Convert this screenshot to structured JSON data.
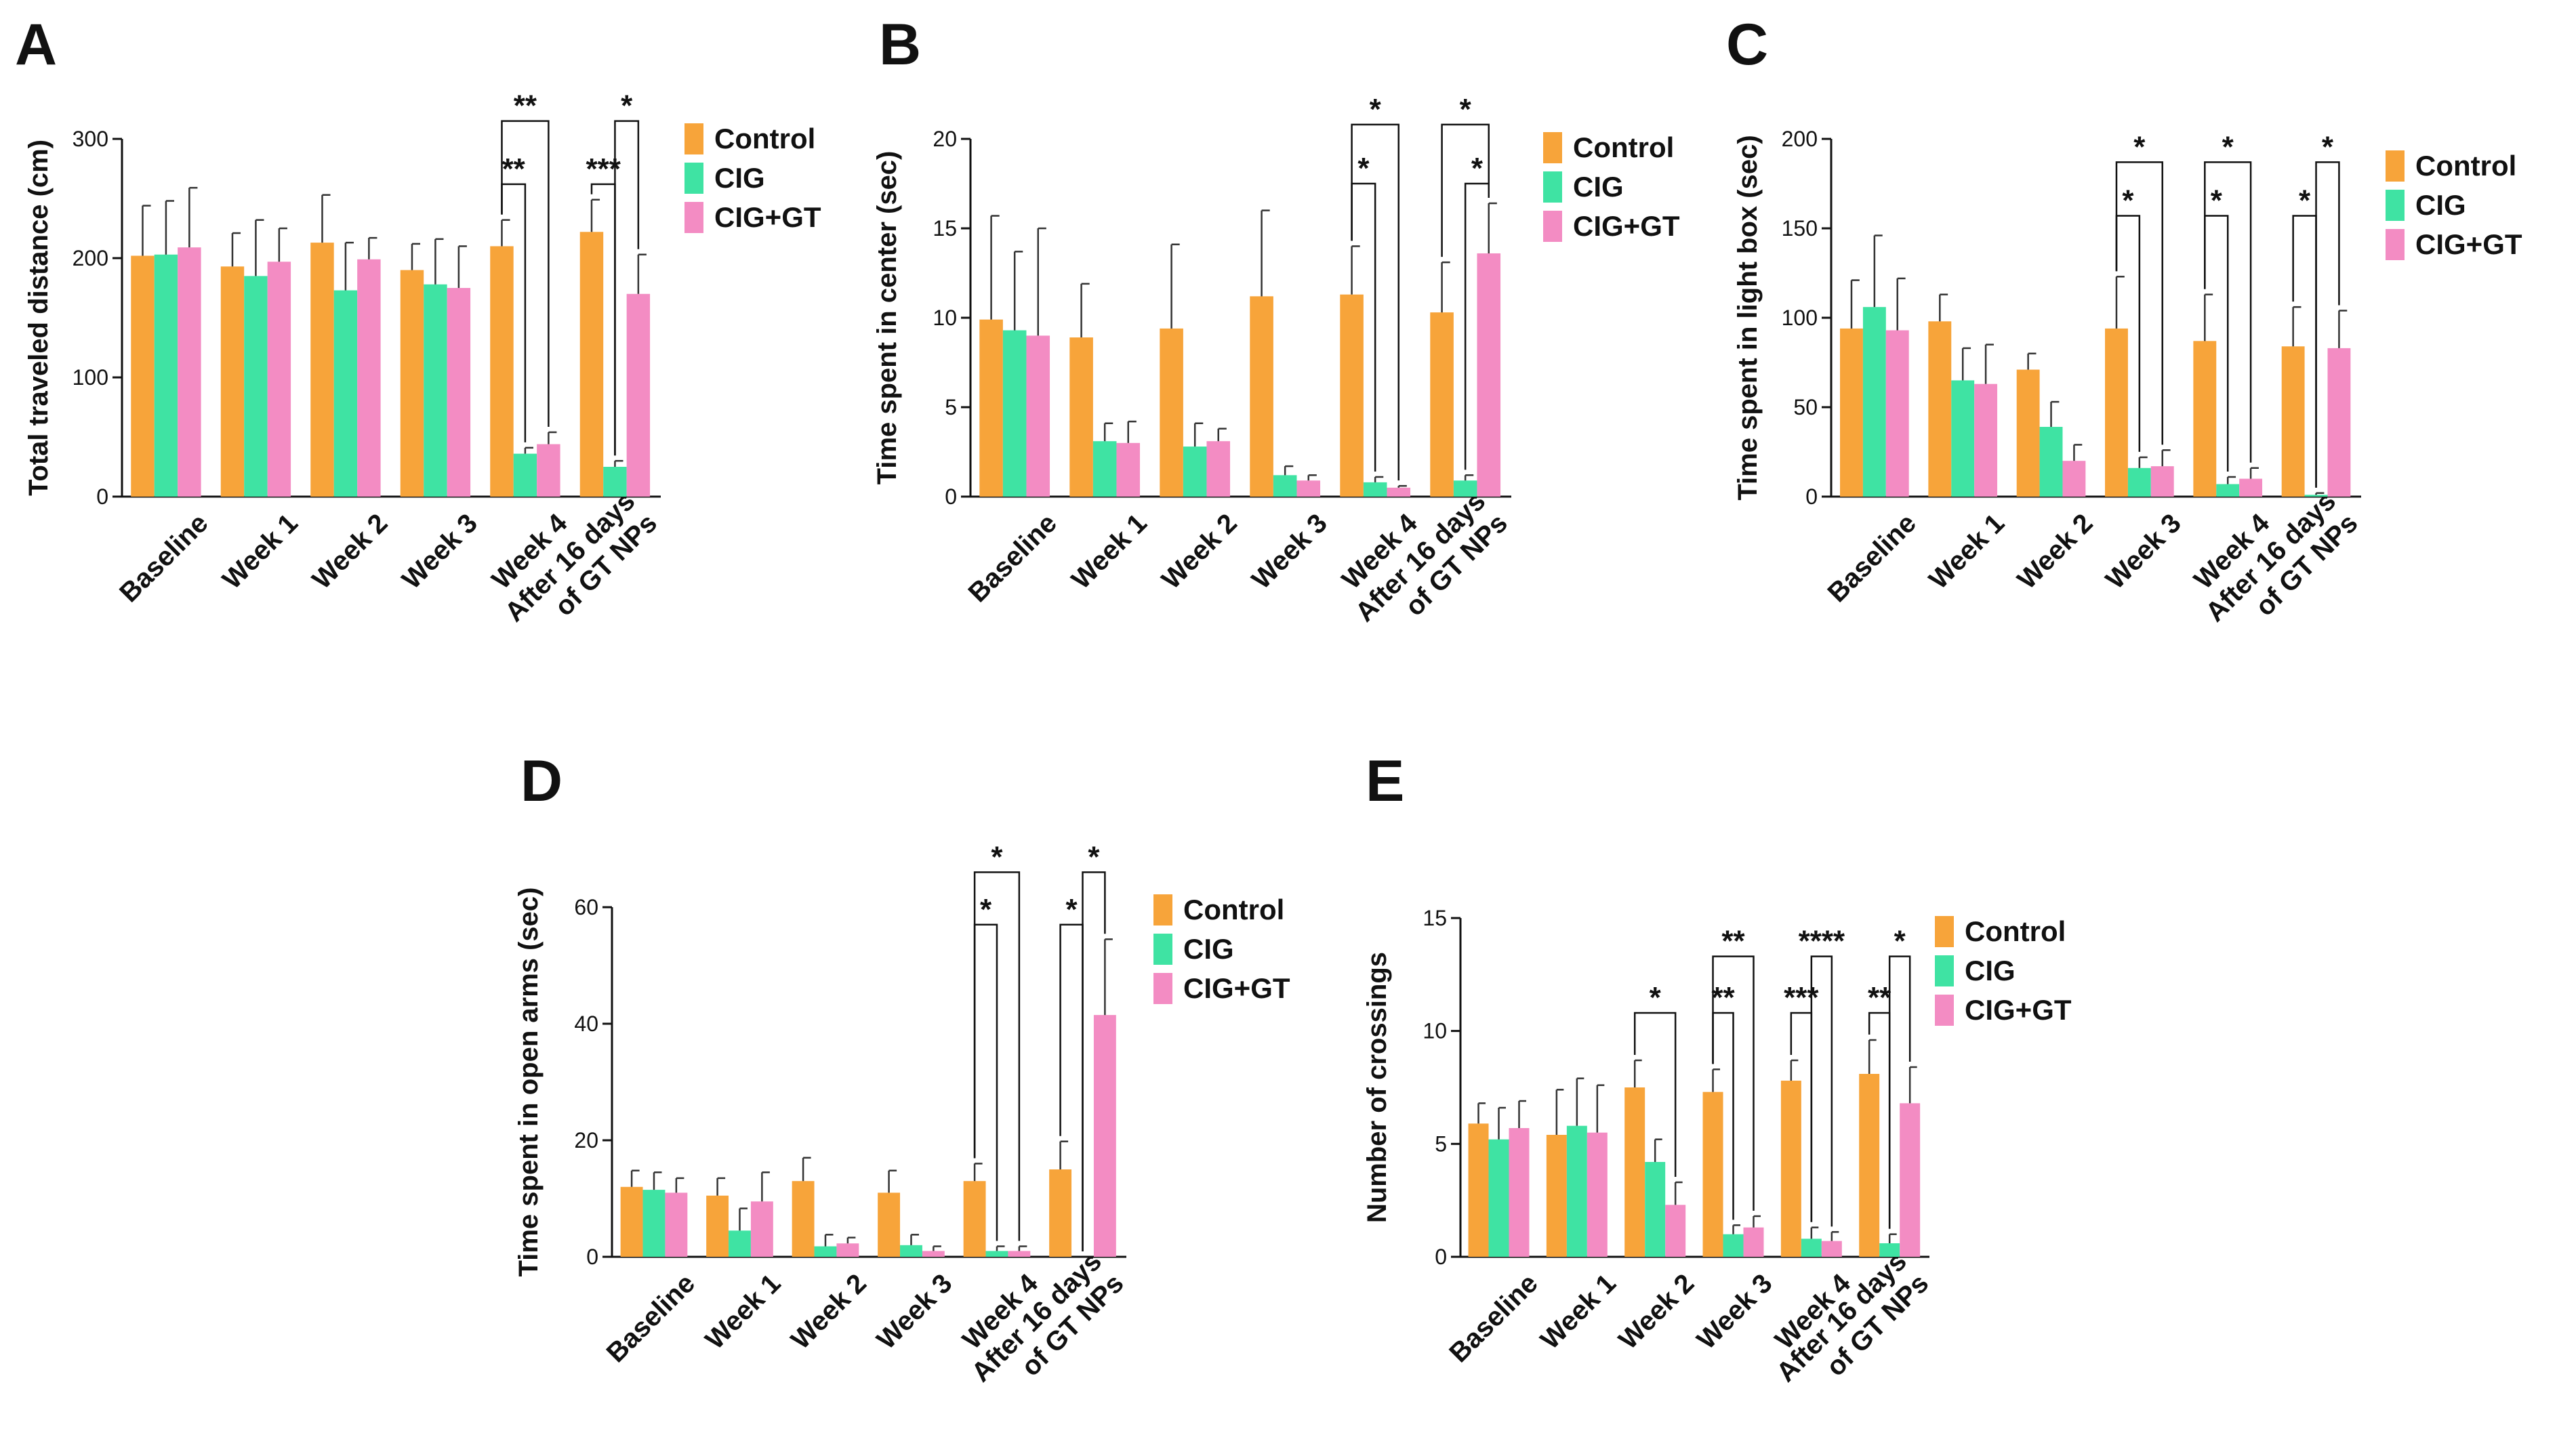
{
  "figure": {
    "categories": [
      "Baseline",
      "Week 1",
      "Week 2",
      "Week 3",
      "Week 4",
      "After 16 days of GT NPs"
    ],
    "category_lines": [
      [
        "Baseline"
      ],
      [
        "Week 1"
      ],
      [
        "Week 2"
      ],
      [
        "Week 3"
      ],
      [
        "Week 4"
      ],
      [
        "After 16 days",
        "of GT NPs"
      ]
    ],
    "legend": [
      "Control",
      "CIG",
      "CIG+GT"
    ],
    "colors": {
      "Control": "#F7A43A",
      "CIG": "#3FE3A3",
      "CIG+GT": "#F38CC3",
      "axis": "#111111"
    }
  },
  "chart_data": [
    {
      "panel": "A",
      "type": "bar",
      "ylabel": "Total traveled distance (cm)",
      "ylim": [
        0,
        300
      ],
      "yticks": [
        0,
        100,
        200,
        300
      ],
      "categories": [
        "Baseline",
        "Week 1",
        "Week 2",
        "Week 3",
        "Week 4",
        "After 16 days of GT NPs"
      ],
      "series": [
        {
          "name": "Control",
          "values": [
            202,
            193,
            213,
            190,
            210,
            222
          ],
          "errors": [
            42,
            28,
            40,
            22,
            22,
            27
          ]
        },
        {
          "name": "CIG",
          "values": [
            203,
            185,
            173,
            178,
            36,
            25
          ],
          "errors": [
            45,
            47,
            40,
            38,
            5,
            5
          ]
        },
        {
          "name": "CIG+GT",
          "values": [
            209,
            197,
            199,
            175,
            44,
            170
          ],
          "errors": [
            50,
            28,
            18,
            35,
            10,
            33
          ]
        }
      ],
      "annotations": [
        {
          "cat": 4,
          "from": 0,
          "to": 1,
          "label": "**",
          "top": 262
        },
        {
          "cat": 4,
          "from": 0,
          "to": 2,
          "label": "**",
          "top": 315
        },
        {
          "cat": 5,
          "from": 0,
          "to": 1,
          "label": "***",
          "top": 262
        },
        {
          "cat": 5,
          "from": 1,
          "to": 2,
          "label": "*",
          "top": 315
        }
      ]
    },
    {
      "panel": "B",
      "type": "bar",
      "ylabel": "Time spent in center (sec)",
      "ylim": [
        0,
        20
      ],
      "yticks": [
        0,
        5,
        10,
        15,
        20
      ],
      "categories": [
        "Baseline",
        "Week 1",
        "Week 2",
        "Week 3",
        "Week 4",
        "After 16 days of GT NPs"
      ],
      "series": [
        {
          "name": "Control",
          "values": [
            9.9,
            8.9,
            9.4,
            11.2,
            11.3,
            10.3
          ],
          "errors": [
            5.8,
            3.0,
            4.7,
            4.8,
            2.7,
            2.8
          ]
        },
        {
          "name": "CIG",
          "values": [
            9.3,
            3.1,
            2.8,
            1.2,
            0.8,
            0.9
          ],
          "errors": [
            4.4,
            1.0,
            1.3,
            0.5,
            0.3,
            0.3
          ]
        },
        {
          "name": "CIG+GT",
          "values": [
            9.0,
            3.0,
            3.1,
            0.9,
            0.5,
            13.6
          ],
          "errors": [
            6.0,
            1.2,
            0.7,
            0.3,
            0.1,
            2.8
          ]
        }
      ],
      "annotations": [
        {
          "cat": 4,
          "from": 0,
          "to": 1,
          "label": "*",
          "top": 17.5
        },
        {
          "cat": 4,
          "from": 0,
          "to": 2,
          "label": "*",
          "top": 20.8
        },
        {
          "cat": 5,
          "from": 0,
          "to": 2,
          "label": "*",
          "top": 20.8
        },
        {
          "cat": 5,
          "from": 1,
          "to": 2,
          "label": "*",
          "top": 17.5
        }
      ]
    },
    {
      "panel": "C",
      "type": "bar",
      "ylabel": "Time spent in light box (sec)",
      "ylim": [
        0,
        200
      ],
      "yticks": [
        0,
        50,
        100,
        150,
        200
      ],
      "categories": [
        "Baseline",
        "Week 1",
        "Week 2",
        "Week 3",
        "Week 4",
        "After 16 days of GT NPs"
      ],
      "series": [
        {
          "name": "Control",
          "values": [
            94,
            98,
            71,
            94,
            87,
            84
          ],
          "errors": [
            27,
            15,
            9,
            29,
            26,
            22
          ]
        },
        {
          "name": "CIG",
          "values": [
            106,
            65,
            39,
            16,
            7,
            1
          ],
          "errors": [
            40,
            18,
            14,
            6,
            4,
            1
          ]
        },
        {
          "name": "CIG+GT",
          "values": [
            93,
            63,
            20,
            17,
            10,
            83
          ],
          "errors": [
            29,
            22,
            9,
            9,
            6,
            21
          ]
        }
      ],
      "annotations": [
        {
          "cat": 3,
          "from": 0,
          "to": 1,
          "label": "*",
          "top": 157
        },
        {
          "cat": 3,
          "from": 0,
          "to": 2,
          "label": "*",
          "top": 187
        },
        {
          "cat": 4,
          "from": 0,
          "to": 1,
          "label": "*",
          "top": 157
        },
        {
          "cat": 4,
          "from": 0,
          "to": 2,
          "label": "*",
          "top": 187
        },
        {
          "cat": 5,
          "from": 0,
          "to": 1,
          "label": "*",
          "top": 157
        },
        {
          "cat": 5,
          "from": 1,
          "to": 2,
          "label": "*",
          "top": 187
        }
      ]
    },
    {
      "panel": "D",
      "type": "bar",
      "ylabel": "Time spent in open arms (sec)",
      "ylim": [
        0,
        60
      ],
      "yticks": [
        0,
        20,
        40,
        60
      ],
      "categories": [
        "Baseline",
        "Week 1",
        "Week 2",
        "Week 3",
        "Week 4",
        "After 16 days of GT NPs"
      ],
      "series": [
        {
          "name": "Control",
          "values": [
            12,
            10.5,
            13,
            11,
            13,
            15
          ],
          "errors": [
            2.8,
            3.0,
            4.0,
            3.8,
            3.0,
            4.8
          ]
        },
        {
          "name": "CIG",
          "values": [
            11.5,
            4.5,
            1.8,
            2,
            1,
            0
          ],
          "errors": [
            3.0,
            3.8,
            2.0,
            1.8,
            0.8,
            0
          ]
        },
        {
          "name": "CIG+GT",
          "values": [
            11,
            9.5,
            2.3,
            1,
            1,
            41.5
          ],
          "errors": [
            2.5,
            5.0,
            1.0,
            0.8,
            0.8,
            13
          ]
        }
      ],
      "annotations": [
        {
          "cat": 4,
          "from": 0,
          "to": 1,
          "label": "*",
          "top": 57
        },
        {
          "cat": 4,
          "from": 0,
          "to": 2,
          "label": "*",
          "top": 66
        },
        {
          "cat": 5,
          "from": 0,
          "to": 1,
          "label": "*",
          "top": 57
        },
        {
          "cat": 5,
          "from": 1,
          "to": 2,
          "label": "*",
          "top": 66
        }
      ]
    },
    {
      "panel": "E",
      "type": "bar",
      "ylabel": "Number of crossings",
      "ylim": [
        0,
        15
      ],
      "yticks": [
        0,
        5,
        10,
        15
      ],
      "categories": [
        "Baseline",
        "Week 1",
        "Week 2",
        "Week 3",
        "Week 4",
        "After 16 days of GT NPs"
      ],
      "series": [
        {
          "name": "Control",
          "values": [
            5.9,
            5.4,
            7.5,
            7.3,
            7.8,
            8.1
          ],
          "errors": [
            0.9,
            2.0,
            1.2,
            1.0,
            0.9,
            1.5
          ]
        },
        {
          "name": "CIG",
          "values": [
            5.2,
            5.8,
            4.2,
            1.0,
            0.8,
            0.6
          ],
          "errors": [
            1.4,
            2.1,
            1.0,
            0.4,
            0.5,
            0.4
          ]
        },
        {
          "name": "CIG+GT",
          "values": [
            5.7,
            5.5,
            2.3,
            1.3,
            0.7,
            6.8
          ],
          "errors": [
            1.2,
            2.1,
            1.0,
            0.5,
            0.4,
            1.6
          ]
        }
      ],
      "annotations": [
        {
          "cat": 2,
          "from": 0,
          "to": 2,
          "label": "*",
          "top": 10.8
        },
        {
          "cat": 3,
          "from": 0,
          "to": 1,
          "label": "**",
          "top": 10.8
        },
        {
          "cat": 3,
          "from": 0,
          "to": 2,
          "label": "**",
          "top": 13.3
        },
        {
          "cat": 4,
          "from": 0,
          "to": 1,
          "label": "***",
          "top": 10.8
        },
        {
          "cat": 4,
          "from": 1,
          "to": 2,
          "label": "****",
          "top": 13.3
        },
        {
          "cat": 5,
          "from": 0,
          "to": 1,
          "label": "**",
          "top": 10.8
        },
        {
          "cat": 5,
          "from": 1,
          "to": 2,
          "label": "*",
          "top": 13.3
        }
      ]
    }
  ]
}
